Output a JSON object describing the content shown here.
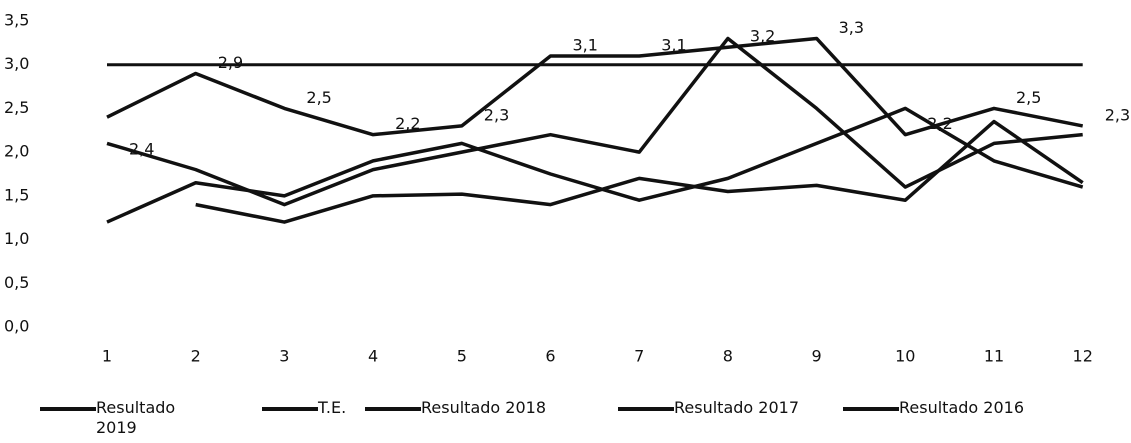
{
  "chart_data": {
    "type": "line",
    "categories": [
      "1",
      "2",
      "3",
      "4",
      "5",
      "6",
      "7",
      "8",
      "9",
      "10",
      "11",
      "12"
    ],
    "series": [
      {
        "name": "Resultado 2019",
        "color": "#111111",
        "values": [
          2.4,
          2.9,
          2.5,
          2.2,
          2.3,
          3.1,
          3.1,
          3.2,
          3.3,
          2.2,
          2.5,
          2.3
        ],
        "value_labels": [
          "2,4",
          "2,9",
          "2,5",
          "2,2",
          "2,3",
          "3,1",
          "3,1",
          "3,2",
          "3,3",
          "2,2",
          "2,5",
          "2,3"
        ]
      },
      {
        "name": "T.E.",
        "color": "#111111",
        "values": [
          3.0,
          3.0,
          3.0,
          3.0,
          3.0,
          3.0,
          3.0,
          3.0,
          3.0,
          3.0,
          3.0,
          3.0
        ]
      },
      {
        "name": "Resultado 2018",
        "color": "#111111",
        "values": [
          2.1,
          1.8,
          1.4,
          1.8,
          2.0,
          2.2,
          2.0,
          3.3,
          2.5,
          1.6,
          2.1,
          2.2
        ]
      },
      {
        "name": "Resultado 2017",
        "color": "#111111",
        "values": [
          1.2,
          1.65,
          1.5,
          1.9,
          2.1,
          1.75,
          1.45,
          1.7,
          2.1,
          2.5,
          1.9,
          1.6
        ]
      },
      {
        "name": "Resultado 2016",
        "color": "#111111",
        "values": [
          null,
          1.4,
          1.2,
          1.5,
          1.52,
          1.4,
          1.7,
          1.55,
          1.62,
          1.45,
          2.35,
          1.65
        ]
      }
    ],
    "ylim": [
      0,
      3.5
    ],
    "yticks": [
      {
        "value": 0,
        "label": "0,0"
      },
      {
        "value": 0.5,
        "label": "0,5"
      },
      {
        "value": 1,
        "label": "1,0"
      },
      {
        "value": 1.5,
        "label": "1,5"
      },
      {
        "value": 2,
        "label": "2,0"
      },
      {
        "value": 2.5,
        "label": "2,5"
      },
      {
        "value": 3,
        "label": "3,0"
      },
      {
        "value": 3.5,
        "label": "3,5"
      }
    ],
    "grid": false,
    "legend": "bottom"
  }
}
